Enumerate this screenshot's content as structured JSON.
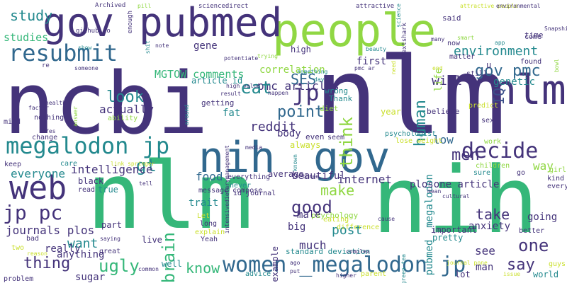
{
  "palette": {
    "dark_purple": "#44337a",
    "indigo": "#3b4f8a",
    "blue": "#31688e",
    "teal": "#23898e",
    "green_teal": "#35b779",
    "green": "#6ece58",
    "light_green": "#90d743",
    "yellow": "#c9df2a",
    "background": "#ffffff"
  },
  "words": [
    {
      "text": "ncbi",
      "color": "dark_purple"
    },
    {
      "text": "nlm",
      "color": "dark_purple"
    },
    {
      "text": "nlm",
      "color": "green_teal"
    },
    {
      "text": "nih",
      "color": "green_teal"
    },
    {
      "text": "people",
      "color": "light_green"
    },
    {
      "text": "pubmed",
      "color": "dark_purple"
    },
    {
      "text": "gov",
      "color": "dark_purple"
    },
    {
      "text": "nih",
      "color": "blue"
    },
    {
      "text": "gov",
      "color": "blue"
    },
    {
      "text": "web",
      "color": "dark_purple"
    },
    {
      "text": "resubmit",
      "color": "blue"
    },
    {
      "text": "megalodon jp",
      "color": "teal"
    },
    {
      "text": "decide",
      "color": "dark_purple"
    },
    {
      "text": "women _megalodon jp",
      "color": "blue"
    },
    {
      "text": "jp pc",
      "color": "dark_purple"
    },
    {
      "text": "nlm",
      "color": "dark_purple"
    },
    {
      "text": "study",
      "color": "teal"
    },
    {
      "text": "pmc articles",
      "color": "dark_purple"
    },
    {
      "text": "environment",
      "color": "teal"
    },
    {
      "text": "MGTOW comments",
      "color": "green_teal"
    },
    {
      "text": "human",
      "color": "teal"
    },
    {
      "text": "gov pmc",
      "color": "blue"
    },
    {
      "text": "IQ",
      "color": "indigo"
    },
    {
      "text": "genetic",
      "color": "teal"
    },
    {
      "text": "will",
      "color": "dark_purple"
    },
    {
      "text": "SES",
      "color": "blue"
    },
    {
      "text": "jp",
      "color": "dark_purple"
    },
    {
      "text": "eat",
      "color": "teal"
    },
    {
      "text": "think",
      "color": "light_green"
    },
    {
      "text": "pubmed _megalodon",
      "color": "teal"
    },
    {
      "text": "point",
      "color": "blue"
    },
    {
      "text": "look",
      "color": "teal"
    },
    {
      "text": "reddit",
      "color": "dark_purple"
    },
    {
      "text": "actually",
      "color": "dark_purple"
    },
    {
      "text": "men",
      "color": "dark_purple"
    },
    {
      "text": "gt",
      "color": "teal"
    },
    {
      "text": "low",
      "color": "blue"
    },
    {
      "text": "intelligence",
      "color": "dark_purple"
    },
    {
      "text": "everyone",
      "color": "teal"
    },
    {
      "text": "brain",
      "color": "green_teal"
    },
    {
      "text": "food",
      "color": "blue"
    },
    {
      "text": "internet",
      "color": "dark_purple"
    },
    {
      "text": "make",
      "color": "light_green"
    },
    {
      "text": "good",
      "color": "dark_purple"
    },
    {
      "text": "plosone article",
      "color": "dark_purple"
    },
    {
      "text": "journals plos",
      "color": "dark_purple"
    },
    {
      "text": "post",
      "color": "teal"
    },
    {
      "text": "one",
      "color": "dark_purple"
    },
    {
      "text": "thing",
      "color": "dark_purple"
    },
    {
      "text": "ugly",
      "color": "green_teal"
    },
    {
      "text": "know",
      "color": "green_teal"
    },
    {
      "text": "say",
      "color": "dark_purple"
    },
    {
      "text": "want",
      "color": "teal"
    },
    {
      "text": "much",
      "color": "dark_purple"
    },
    {
      "text": "see",
      "color": "dark_purple"
    },
    {
      "text": "take",
      "color": "dark_purple"
    },
    {
      "text": "way",
      "color": "light_green"
    },
    {
      "text": "gene",
      "color": "dark_purple"
    },
    {
      "text": "studies",
      "color": "green_teal"
    },
    {
      "text": "article id",
      "color": "teal"
    },
    {
      "text": "correlation",
      "color": "light_green"
    },
    {
      "text": "high",
      "color": "dark_purple"
    },
    {
      "text": "first",
      "color": "dark_purple"
    },
    {
      "text": "wrong",
      "color": "teal"
    },
    {
      "text": "Thank",
      "color": "teal"
    },
    {
      "text": "getting",
      "color": "dark_purple"
    },
    {
      "text": "fat",
      "color": "teal"
    },
    {
      "text": "year",
      "color": "yellow"
    },
    {
      "text": "body",
      "color": "dark_purple"
    },
    {
      "text": "always",
      "color": "yellow"
    },
    {
      "text": "even",
      "color": "dark_purple"
    },
    {
      "text": "black",
      "color": "dark_purple"
    },
    {
      "text": "true",
      "color": "teal"
    },
    {
      "text": "beautiful",
      "color": "dark_purple"
    },
    {
      "text": "trait",
      "color": "teal"
    },
    {
      "text": "male",
      "color": "dark_purple"
    },
    {
      "text": "big",
      "color": "dark_purple"
    },
    {
      "text": "part",
      "color": "dark_purple"
    },
    {
      "text": "live",
      "color": "dark_purple"
    },
    {
      "text": "anything",
      "color": "dark_purple"
    },
    {
      "text": "well",
      "color": "teal"
    },
    {
      "text": "sugar",
      "color": "dark_purple"
    },
    {
      "text": "standard deviation",
      "color": "teal"
    },
    {
      "text": "important",
      "color": "dark_purple"
    },
    {
      "text": "pretty",
      "color": "teal"
    },
    {
      "text": "anxiety",
      "color": "dark_purple"
    },
    {
      "text": "man",
      "color": "dark_purple"
    },
    {
      "text": "lot",
      "color": "dark_purple"
    },
    {
      "text": "world",
      "color": "teal"
    },
    {
      "text": "going",
      "color": "dark_purple"
    },
    {
      "text": "really",
      "color": "dark_purple"
    },
    {
      "text": "u",
      "color": "dark_purple"
    },
    {
      "text": "time",
      "color": "dark_purple"
    },
    {
      "text": "come",
      "color": "dark_purple"
    },
    {
      "text": "found",
      "color": "dark_purple"
    },
    {
      "text": "matter",
      "color": "dark_purple"
    },
    {
      "text": "still",
      "color": "dark_purple"
    },
    {
      "text": "believe",
      "color": "dark_purple"
    },
    {
      "text": "said",
      "color": "dark_purple"
    },
    {
      "text": "now",
      "color": "dark_purple"
    },
    {
      "text": "due",
      "color": "dark_purple"
    },
    {
      "text": "life",
      "color": "light_green"
    },
    {
      "text": "diet",
      "color": "light_green"
    },
    {
      "text": "psychology",
      "color": "light_green"
    },
    {
      "text": "difference",
      "color": "yellow"
    },
    {
      "text": "eating",
      "color": "yellow"
    },
    {
      "text": "example",
      "color": "dark_purple"
    },
    {
      "text": "everything",
      "color": "dark_purple"
    },
    {
      "text": "never",
      "color": "teal"
    },
    {
      "text": "id journal",
      "color": "dark_purple"
    },
    {
      "text": "average",
      "color": "dark_purple"
    },
    {
      "text": "message compose",
      "color": "dark_purple"
    },
    {
      "text": "Let",
      "color": "yellow"
    },
    {
      "text": "long",
      "color": "dark_purple"
    },
    {
      "text": "explain",
      "color": "yellow"
    },
    {
      "text": "Yeah",
      "color": "dark_purple"
    },
    {
      "text": "two",
      "color": "yellow"
    },
    {
      "text": "bad",
      "color": "dark_purple"
    },
    {
      "text": "great",
      "color": "dark_purple"
    },
    {
      "text": "advice",
      "color": "teal"
    },
    {
      "text": "parent",
      "color": "yellow"
    },
    {
      "text": "problem",
      "color": "dark_purple"
    },
    {
      "text": "every",
      "color": "dark_purple"
    },
    {
      "text": "sure",
      "color": "teal"
    },
    {
      "text": "children",
      "color": "light_green"
    },
    {
      "text": "kind",
      "color": "dark_purple"
    },
    {
      "text": "girl",
      "color": "light_green"
    },
    {
      "text": "go",
      "color": "dark_purple"
    },
    {
      "text": "better",
      "color": "dark_purple"
    },
    {
      "text": "guys",
      "color": "yellow"
    },
    {
      "text": "mind",
      "color": "dark_purple"
    },
    {
      "text": "nothing",
      "color": "dark_purple"
    },
    {
      "text": "change",
      "color": "dark_purple"
    },
    {
      "text": "keep",
      "color": "dark_purple"
    },
    {
      "text": "care",
      "color": "teal"
    },
    {
      "text": "read",
      "color": "dark_purple"
    },
    {
      "text": "ability",
      "color": "light_green"
    },
    {
      "text": "psychologist",
      "color": "teal"
    },
    {
      "text": "lose weight",
      "color": "yellow"
    },
    {
      "text": "seem",
      "color": "dark_purple"
    },
    {
      "text": "work",
      "color": "light_green"
    },
    {
      "text": "sex",
      "color": "dark_purple"
    },
    {
      "text": "predict",
      "color": "yellow"
    },
    {
      "text": "github io",
      "color": "dark_purple"
    },
    {
      "text": "re",
      "color": "dark_purple"
    },
    {
      "text": "pill",
      "color": "light_green"
    },
    {
      "text": "Archived",
      "color": "dark_purple"
    },
    {
      "text": "enough",
      "color": "dark_purple"
    },
    {
      "text": "sciencedirect",
      "color": "dark_purple"
    },
    {
      "text": "attractive",
      "color": "dark_purple"
    },
    {
      "text": "attractive people",
      "color": "yellow"
    },
    {
      "text": "environmental",
      "color": "dark_purple"
    },
    {
      "text": "science",
      "color": "teal"
    },
    {
      "text": "nextshark",
      "color": "dark_purple"
    },
    {
      "text": "SnapshitBot",
      "color": "dark_purple"
    },
    {
      "text": "smart",
      "color": "light_green"
    },
    {
      "text": "app",
      "color": "teal"
    },
    {
      "text": "beauty",
      "color": "teal"
    },
    {
      "text": "pmc ar",
      "color": "dark_purple"
    },
    {
      "text": "trying",
      "color": "light_green"
    },
    {
      "text": "potentiate",
      "color": "dark_purple"
    },
    {
      "text": "something",
      "color": "teal"
    },
    {
      "text": "high value",
      "color": "dark_purple"
    },
    {
      "text": "result",
      "color": "dark_purple"
    },
    {
      "text": "happen",
      "color": "dark_purple"
    },
    {
      "text": "health",
      "color": "dark_purple"
    },
    {
      "text": "factor",
      "color": "dark_purple"
    },
    {
      "text": "note",
      "color": "dark_purple"
    },
    {
      "text": "show",
      "color": "teal"
    },
    {
      "text": "someone",
      "color": "dark_purple"
    },
    {
      "text": "Yes",
      "color": "dark_purple"
    },
    {
      "text": "answer",
      "color": "light_green"
    },
    {
      "text": "shit",
      "color": "teal"
    },
    {
      "text": "around",
      "color": "teal"
    },
    {
      "text": "link springer",
      "color": "yellow"
    },
    {
      "text": "intensivedietarymanagement",
      "color": "dark_purple"
    },
    {
      "text": "known",
      "color": "teal"
    },
    {
      "text": "three",
      "color": "dark_purple"
    },
    {
      "text": "media",
      "color": "dark_purple"
    },
    {
      "text": "need",
      "color": "yellow"
    },
    {
      "text": "day",
      "color": "teal"
    },
    {
      "text": "end",
      "color": "yellow"
    },
    {
      "text": "cultural",
      "color": "dark_purple"
    },
    {
      "text": "mean",
      "color": "dark_purple"
    },
    {
      "text": "bowl",
      "color": "light_green"
    },
    {
      "text": "tell",
      "color": "dark_purple"
    },
    {
      "text": "saying",
      "color": "dark_purple"
    },
    {
      "text": "ago",
      "color": "dark_purple"
    },
    {
      "text": "cause",
      "color": "dark_purple"
    },
    {
      "text": "put",
      "color": "dark_purple"
    },
    {
      "text": "complex",
      "color": "dark_purple"
    },
    {
      "text": "higher",
      "color": "dark_purple"
    },
    {
      "text": "green tea",
      "color": "teal"
    },
    {
      "text": "journal pone",
      "color": "yellow"
    },
    {
      "text": "issue",
      "color": "yellow"
    },
    {
      "text": "many",
      "color": "dark_purple"
    },
    {
      "text": "reason",
      "color": "yellow"
    },
    {
      "text": "common",
      "color": "dark_purple"
    },
    {
      "text": "cup",
      "color": "dark_purple"
    },
    {
      "text": "certainly",
      "color": "dark_purple"
    },
    {
      "text": "s",
      "color": "teal"
    },
    {
      "text": "show github",
      "color": "yellow"
    }
  ]
}
